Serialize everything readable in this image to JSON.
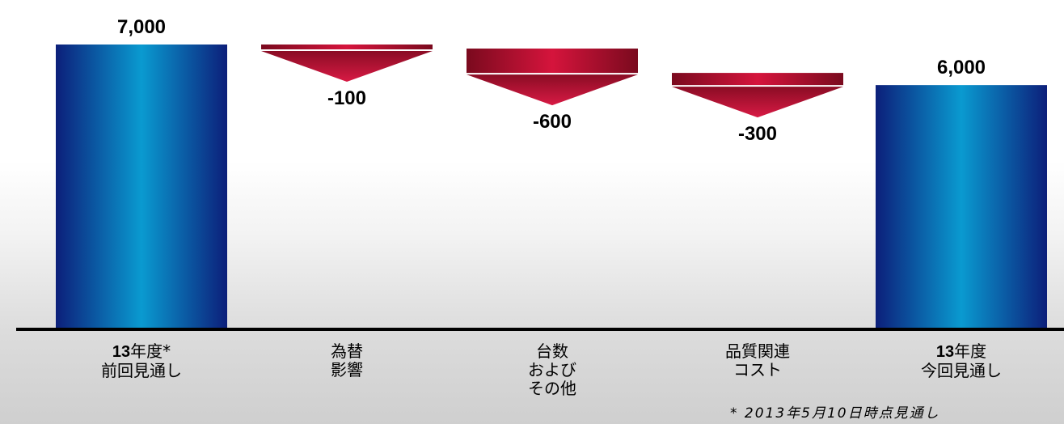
{
  "chart_data": {
    "type": "waterfall",
    "ylim": [
      0,
      7000
    ],
    "categories": [
      {
        "lines": [
          "13年度*",
          "前回見通し"
        ],
        "bold_prefix": "13"
      },
      {
        "lines": [
          "為替",
          "影響"
        ],
        "bold_prefix": ""
      },
      {
        "lines": [
          "台数",
          "および",
          "その他"
        ],
        "bold_prefix": ""
      },
      {
        "lines": [
          "品質関連",
          "コスト"
        ],
        "bold_prefix": ""
      },
      {
        "lines": [
          "13年度",
          "今回見通し"
        ],
        "bold_prefix": "13"
      }
    ],
    "values": [
      7000,
      -100,
      -600,
      -300,
      6000
    ],
    "value_labels": [
      "7,000",
      "-100",
      "-600",
      "-300",
      "6,000"
    ],
    "bar_kinds": [
      "total",
      "delta",
      "delta",
      "delta",
      "total"
    ],
    "colors": {
      "total_edge": "#0c1f7a",
      "total_center": "#0a9ad0",
      "delta_edge": "#7a0a1e",
      "delta_center": "#d5143c",
      "baseline": "#000000"
    }
  },
  "footnote": "* 2013年5月10日時点見通し"
}
